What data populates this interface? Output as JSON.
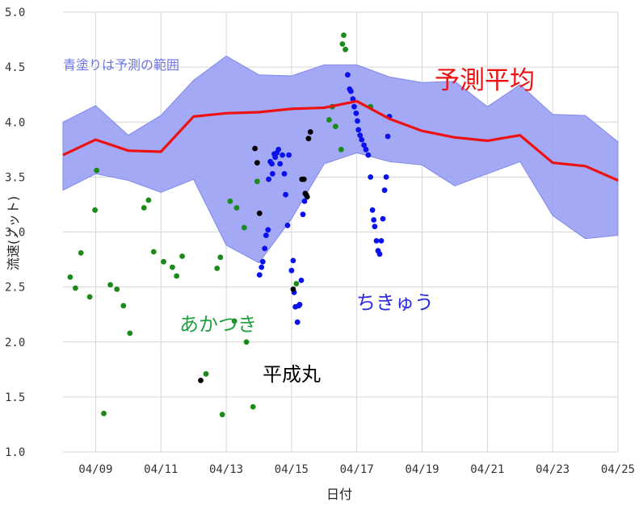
{
  "chart_data": {
    "type": "scatter",
    "xlabel": "日付",
    "ylabel": "流速(ノット)",
    "xlim": [
      "2008-04-08",
      "2008-04-25"
    ],
    "ylim": [
      1.0,
      5.0
    ],
    "yticks": [
      "1.0",
      "1.5",
      "2.0",
      "2.5",
      "3.0",
      "3.5",
      "4.0",
      "4.5",
      "5.0"
    ],
    "xticks": [
      "04/09",
      "04/11",
      "04/13",
      "04/15",
      "04/17",
      "04/19",
      "04/21",
      "04/23",
      "04/25"
    ],
    "grid": true,
    "colors": {
      "band": "#9aa0f4",
      "band_edge": "#8088e8",
      "mean": "#ee1111",
      "akatsuki": "#1a8a1a",
      "chikyu": "#0a10ee",
      "heiseimaru": "#000000",
      "band_note": "#6d74e6",
      "akatsuki_label": "#22a040",
      "chikyu_label": "#2a2ae0",
      "heiseimaru_label": "#000000",
      "mean_label": "#ee1111"
    },
    "annotations": {
      "band_note": "青塗りは予測の範囲",
      "mean": "予測平均",
      "akatsuki": "あかつき",
      "chikyu": "ちきゅう",
      "heiseimaru": "平成丸"
    },
    "forecast_x": [
      "04/08",
      "04/09",
      "04/10",
      "04/11",
      "04/12",
      "04/13",
      "04/14",
      "04/15",
      "04/16",
      "04/17",
      "04/18",
      "04/19",
      "04/20",
      "04/21",
      "04/22",
      "04/23",
      "04/24",
      "04/25"
    ],
    "forecast_mean": [
      3.7,
      3.84,
      3.74,
      3.73,
      4.05,
      4.08,
      4.09,
      4.12,
      4.13,
      4.19,
      4.03,
      3.92,
      3.86,
      3.83,
      3.88,
      3.63,
      3.6,
      3.47
    ],
    "forecast_upper": [
      4.0,
      4.15,
      3.88,
      4.06,
      4.38,
      4.6,
      4.43,
      4.42,
      4.52,
      4.52,
      4.41,
      4.36,
      4.37,
      4.14,
      4.34,
      4.07,
      4.06,
      3.82
    ],
    "forecast_lower": [
      3.38,
      3.53,
      3.47,
      3.36,
      3.48,
      2.88,
      2.72,
      3.12,
      3.62,
      3.72,
      3.64,
      3.61,
      3.42,
      3.53,
      3.64,
      3.15,
      2.94,
      2.97
    ],
    "series": [
      {
        "key": "akatsuki",
        "x": [
          8.22,
          8.38,
          8.55,
          8.82,
          8.98,
          9.03,
          9.25,
          9.45,
          9.65,
          9.85,
          10.05,
          10.48,
          10.62,
          10.78,
          11.08,
          11.35,
          11.48,
          11.65,
          12.38,
          12.72,
          12.82,
          12.88,
          13.12,
          13.25,
          13.32,
          13.55,
          13.62,
          13.82,
          13.95,
          15.15,
          16.15,
          16.25,
          16.35,
          16.52,
          16.56,
          16.6,
          16.65,
          17.42
        ],
        "y": [
          2.59,
          2.49,
          2.81,
          2.41,
          3.2,
          3.56,
          1.35,
          2.52,
          2.48,
          2.33,
          2.08,
          3.22,
          3.29,
          2.82,
          2.73,
          2.68,
          2.6,
          2.78,
          1.71,
          2.67,
          2.77,
          1.34,
          3.28,
          2.19,
          3.22,
          3.04,
          2.0,
          1.41,
          3.46,
          2.53,
          4.02,
          4.14,
          3.96,
          3.75,
          4.71,
          4.79,
          4.66,
          4.14
        ]
      },
      {
        "key": "chikyu",
        "x": [
          14.02,
          14.08,
          14.12,
          14.18,
          14.22,
          14.28,
          14.3,
          14.35,
          14.4,
          14.42,
          14.47,
          14.5,
          14.55,
          14.6,
          14.65,
          14.72,
          14.78,
          14.82,
          14.88,
          14.92,
          15.0,
          15.05,
          15.08,
          15.12,
          15.18,
          15.22,
          15.25,
          15.3,
          15.35,
          15.4,
          15.45,
          16.72,
          16.78,
          16.82,
          16.88,
          16.92,
          16.98,
          17.02,
          17.05,
          17.1,
          17.15,
          17.22,
          17.28,
          17.35,
          17.42,
          17.48,
          17.52,
          17.55,
          17.6,
          17.65,
          17.7,
          17.75,
          17.8,
          17.85,
          17.9,
          17.95,
          18.0
        ],
        "y": [
          2.61,
          2.68,
          2.73,
          2.85,
          2.97,
          3.02,
          3.48,
          3.64,
          3.62,
          3.53,
          3.71,
          3.68,
          3.72,
          3.75,
          3.62,
          3.7,
          3.53,
          3.34,
          3.06,
          3.7,
          2.65,
          2.74,
          2.45,
          2.32,
          2.18,
          2.33,
          2.34,
          2.56,
          3.16,
          3.28,
          3.34,
          4.43,
          4.3,
          4.28,
          4.21,
          4.14,
          4.08,
          4.01,
          3.93,
          3.88,
          3.84,
          3.79,
          3.75,
          3.7,
          3.5,
          3.2,
          3.11,
          3.05,
          2.92,
          2.83,
          2.8,
          2.92,
          3.12,
          3.38,
          3.5,
          3.87,
          4.05
        ]
      },
      {
        "key": "heiseimaru",
        "x": [
          12.22,
          13.88,
          13.95,
          14.02,
          15.05,
          15.32,
          15.38,
          15.42,
          15.48,
          15.52,
          15.58
        ],
        "y": [
          1.65,
          3.76,
          3.63,
          3.17,
          2.48,
          3.48,
          3.48,
          3.35,
          3.32,
          3.85,
          3.91
        ]
      }
    ]
  }
}
